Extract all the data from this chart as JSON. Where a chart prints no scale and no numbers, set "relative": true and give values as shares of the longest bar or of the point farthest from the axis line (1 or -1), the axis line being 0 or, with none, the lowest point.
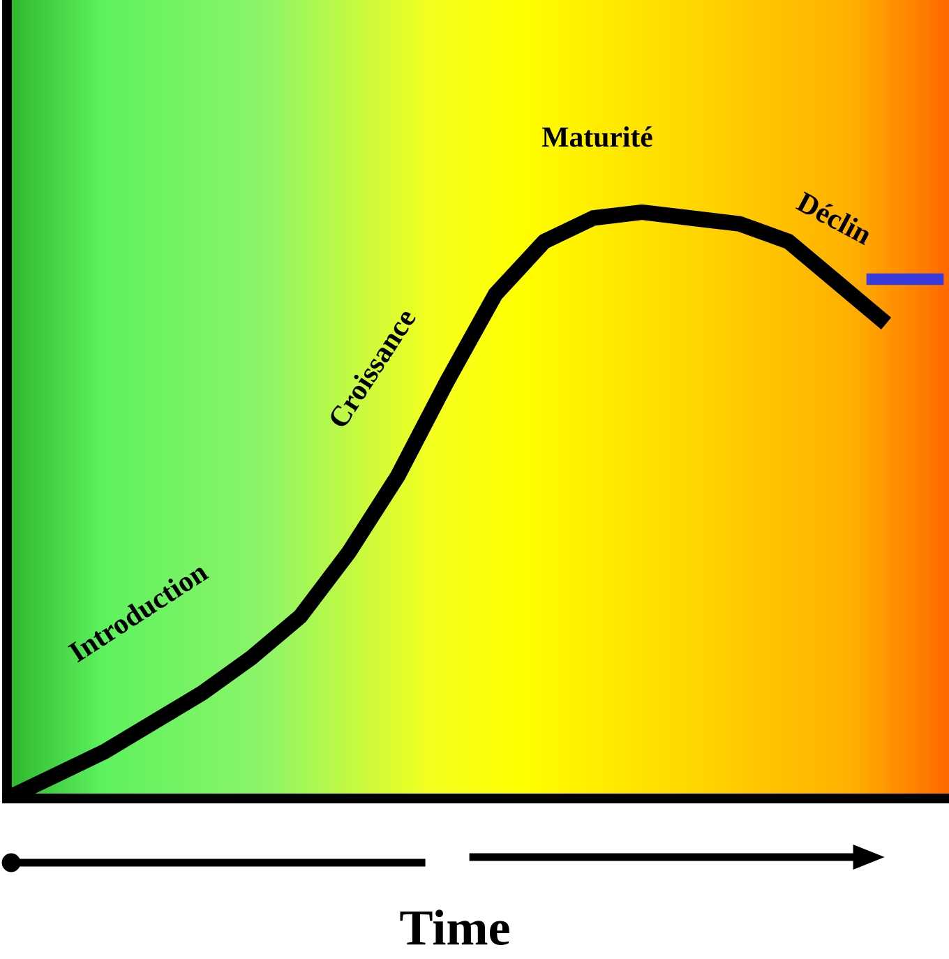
{
  "chart_data": {
    "type": "line",
    "relative": true,
    "xlabel": "Time",
    "annotations": [
      "Introduction",
      "Croissance",
      "Maturité",
      "Déclin"
    ],
    "categories": [
      null,
      null,
      null,
      null,
      null,
      null,
      null,
      null,
      null,
      null,
      null,
      null,
      null,
      null,
      null,
      null,
      null,
      null,
      null
    ],
    "series": [
      {
        "color": "#000000",
        "values": [
          0,
          0.04,
          0.08,
          0.13,
          0.18,
          0.24,
          0.31,
          0.42,
          0.55,
          0.71,
          0.86,
          0.95,
          0.99,
          1,
          0.99,
          0.98,
          0.95,
          0.88,
          0.81
        ]
      }
    ],
    "marker": "none",
    "line_style": "solid",
    "legend": false
  }
}
